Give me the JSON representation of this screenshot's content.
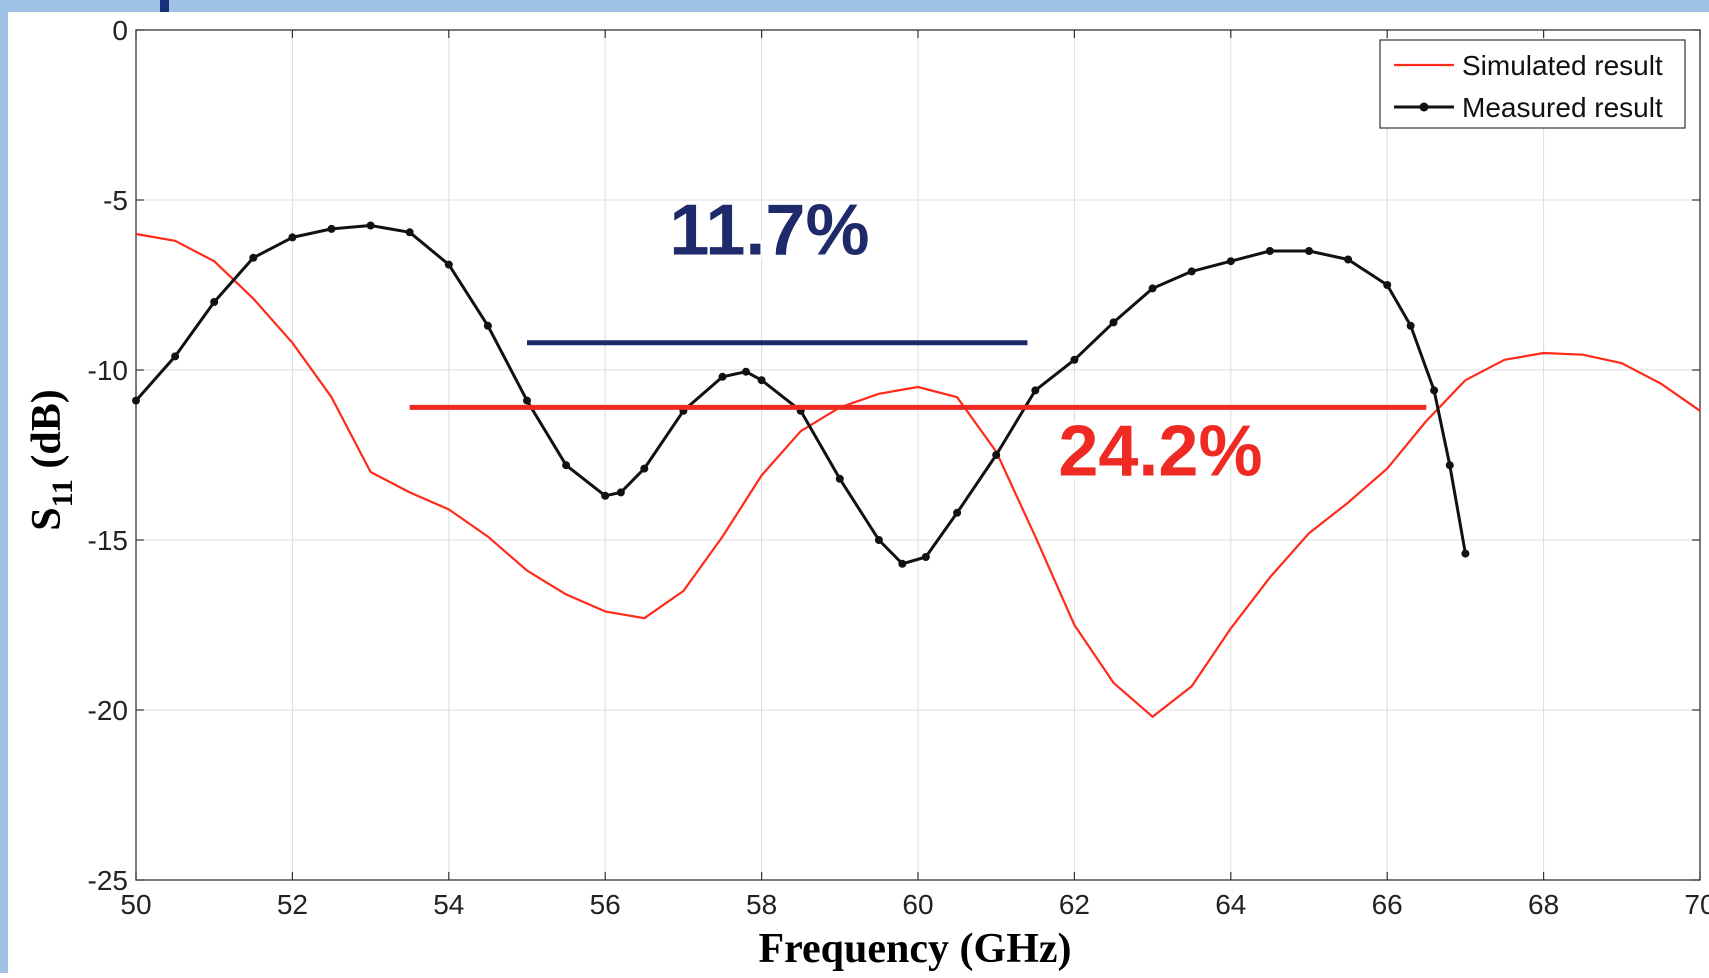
{
  "chart_data": {
    "type": "line",
    "xlabel": "Frequency (GHz)",
    "ylabel_main": "S",
    "ylabel_sub": "11",
    "ylabel_unit": " (dB)",
    "xlim": [
      50,
      70
    ],
    "ylim": [
      -25,
      0
    ],
    "xticks": [
      50,
      52,
      54,
      56,
      58,
      60,
      62,
      64,
      66,
      68,
      70
    ],
    "yticks": [
      0,
      -5,
      -10,
      -15,
      -20,
      -25
    ],
    "grid": true,
    "legend_position": "top-right",
    "series": [
      {
        "name": "Simulated result",
        "color": "#ff2a1a",
        "markers": false,
        "x": [
          50,
          50.5,
          51,
          51.5,
          52,
          52.5,
          53,
          53.5,
          54,
          54.5,
          55,
          55.5,
          56,
          56.5,
          57,
          57.5,
          58,
          58.5,
          59,
          59.5,
          60,
          60.5,
          61,
          61.5,
          62,
          62.5,
          63,
          63.5,
          64,
          64.5,
          65,
          65.5,
          66,
          66.5,
          67,
          67.5,
          68,
          68.5,
          69,
          69.5,
          70
        ],
        "y": [
          -6.0,
          -6.2,
          -6.8,
          -7.9,
          -9.2,
          -10.8,
          -13.0,
          -13.6,
          -14.1,
          -14.9,
          -15.9,
          -16.6,
          -17.1,
          -17.3,
          -16.5,
          -14.9,
          -13.1,
          -11.8,
          -11.1,
          -10.7,
          -10.5,
          -10.8,
          -12.4,
          -14.9,
          -17.5,
          -19.2,
          -20.2,
          -19.3,
          -17.6,
          -16.1,
          -14.8,
          -13.9,
          -12.9,
          -11.5,
          -10.3,
          -9.7,
          -9.5,
          -9.55,
          -9.8,
          -10.4,
          -11.2
        ]
      },
      {
        "name": "Measured result",
        "color": "#111111",
        "markers": true,
        "x": [
          50,
          50.5,
          51,
          51.5,
          52,
          52.5,
          53,
          53.5,
          54,
          54.5,
          55,
          55.5,
          56,
          56.2,
          56.5,
          57,
          57.5,
          57.8,
          58,
          58.5,
          59,
          59.5,
          59.8,
          60.1,
          60.5,
          61,
          61.5,
          62,
          62.5,
          63,
          63.5,
          64,
          64.5,
          65,
          65.5,
          66,
          66.3,
          66.6,
          66.8,
          67
        ],
        "y": [
          -10.9,
          -9.6,
          -8.0,
          -6.7,
          -6.1,
          -5.85,
          -5.75,
          -5.95,
          -6.9,
          -8.7,
          -10.9,
          -12.8,
          -13.7,
          -13.6,
          -12.9,
          -11.2,
          -10.2,
          -10.05,
          -10.3,
          -11.2,
          -13.2,
          -15.0,
          -15.7,
          -15.5,
          -14.2,
          -12.5,
          -10.6,
          -9.7,
          -8.6,
          -7.6,
          -7.1,
          -6.8,
          -6.5,
          -6.5,
          -6.75,
          -7.5,
          -8.7,
          -10.6,
          -12.8,
          -15.4
        ]
      }
    ],
    "annotations": [
      {
        "text": "11.7%",
        "color": "#1f2a6b",
        "line_x": [
          55.0,
          61.4
        ],
        "line_y": -9.2,
        "label_x": 58.1,
        "label_y": -6.6
      },
      {
        "text": "24.2%",
        "color": "#ee2a22",
        "line_x": [
          53.5,
          66.5
        ],
        "line_y": -11.1,
        "label_x": 63.1,
        "label_y": -13.1
      }
    ]
  }
}
